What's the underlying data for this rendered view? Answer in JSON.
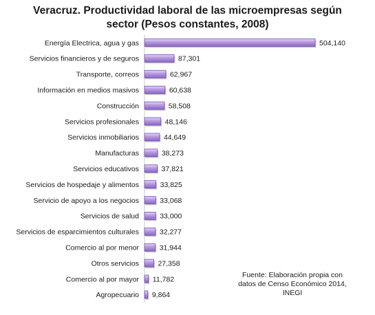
{
  "chart_data": {
    "type": "bar",
    "orientation": "horizontal",
    "title": "Veracruz. Productividad laboral de las microempresas según sector (Pesos constantes, 2008)",
    "title_lines": [
      "Veracruz. Productividad laboral de las microempresas según",
      "sector (Pesos constantes, 2008)"
    ],
    "xlabel": "",
    "ylabel": "",
    "grid": false,
    "legend": "none",
    "bar_color": "#a98ad6",
    "bar_edge_color": "#6e4fa8",
    "categories": [
      "Energía Electrica, agua y gas",
      "Servicios financieros y de seguros",
      "Transporte, correos",
      "Información en medios masivos",
      "Construcción",
      "Servicios profesionales",
      "Servicios inmobiliarios",
      "Manufacturas",
      "Servicios educativos",
      "Servicios de hospedaje y alimentos",
      "Servicio de apoyo a los negocios",
      "Servicios de salud",
      "Servicios de esparcimientos culturales",
      "Comercio al por menor",
      "Otros servicios",
      "Comercio al por mayor",
      "Agropecuario"
    ],
    "values": [
      504140,
      87301,
      62967,
      60638,
      58508,
      48146,
      44649,
      38273,
      37821,
      33825,
      33068,
      33000,
      32277,
      31944,
      27358,
      11782,
      9864
    ],
    "value_labels": [
      "504,140",
      "87,301",
      "62,967",
      "60,638",
      "58,508",
      "48,146",
      "44,649",
      "38,273",
      "37,821",
      "33,825",
      "33,068",
      "33,000",
      "32,277",
      "31,944",
      "27,358",
      "11,782",
      "9,864"
    ],
    "xlim": [
      0,
      504140
    ]
  },
  "source_note": [
    "Fuente: Elaboración propia con",
    "datos de Censo Económico 2014,",
    "INEGI"
  ]
}
